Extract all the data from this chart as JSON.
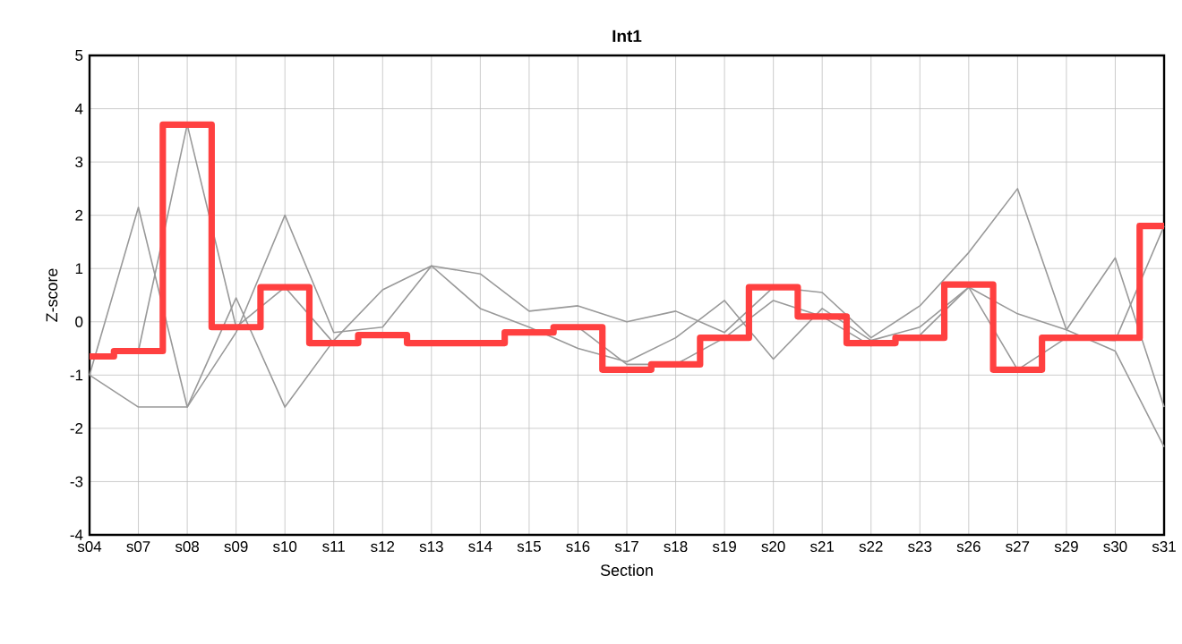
{
  "chart_data": {
    "type": "line",
    "title": "Int1",
    "xlabel": "Section",
    "ylabel": "Z-score",
    "categories": [
      "s04",
      "s07",
      "s08",
      "s09",
      "s10",
      "s11",
      "s12",
      "s13",
      "s14",
      "s15",
      "s16",
      "s17",
      "s18",
      "s19",
      "s20",
      "s21",
      "s22",
      "s23",
      "s26",
      "s27",
      "s29",
      "s30",
      "s31"
    ],
    "ylim": [
      -4,
      5
    ],
    "yticks": [
      -4,
      -3,
      -2,
      -1,
      0,
      1,
      2,
      3,
      4,
      5
    ],
    "grid": true,
    "marker": "none",
    "line_style": "solid",
    "series": [
      {
        "color": "#999999",
        "values": [
          -1.0,
          2.15,
          -1.6,
          0.45,
          -1.6,
          -0.35,
          0.6,
          1.05,
          0.9,
          0.2,
          0.3,
          0.0,
          0.2,
          -0.2,
          0.65,
          0.55,
          -0.3,
          0.3,
          1.3,
          2.5,
          -0.15,
          -0.55,
          -2.35
        ]
      },
      {
        "color": "#999999",
        "values": [
          -1.0,
          -1.6,
          -1.6,
          -0.2,
          2.0,
          -0.2,
          -0.1,
          1.05,
          0.25,
          -0.1,
          -0.5,
          -0.75,
          -0.3,
          0.4,
          -0.7,
          0.25,
          -0.35,
          -0.1,
          0.65,
          0.15,
          -0.15,
          1.2,
          -1.6
        ]
      },
      {
        "color": "#999999",
        "values": [
          -0.65,
          -0.55,
          3.7,
          -0.1,
          0.65,
          -0.4,
          null,
          null,
          null,
          -0.2,
          -0.1,
          -0.8,
          -0.8,
          -0.3,
          0.4,
          0.1,
          -0.45,
          -0.25,
          0.65,
          -0.9,
          -0.3,
          -0.35,
          1.8
        ]
      },
      {
        "type": "step",
        "color": "#ff4040",
        "values": [
          -0.65,
          -0.55,
          3.7,
          -0.1,
          0.65,
          -0.4,
          -0.25,
          -0.4,
          -0.4,
          -0.2,
          -0.1,
          -0.9,
          -0.8,
          -0.3,
          0.65,
          0.1,
          -0.4,
          -0.3,
          0.7,
          -0.9,
          -0.3,
          -0.3,
          1.8
        ]
      }
    ]
  }
}
